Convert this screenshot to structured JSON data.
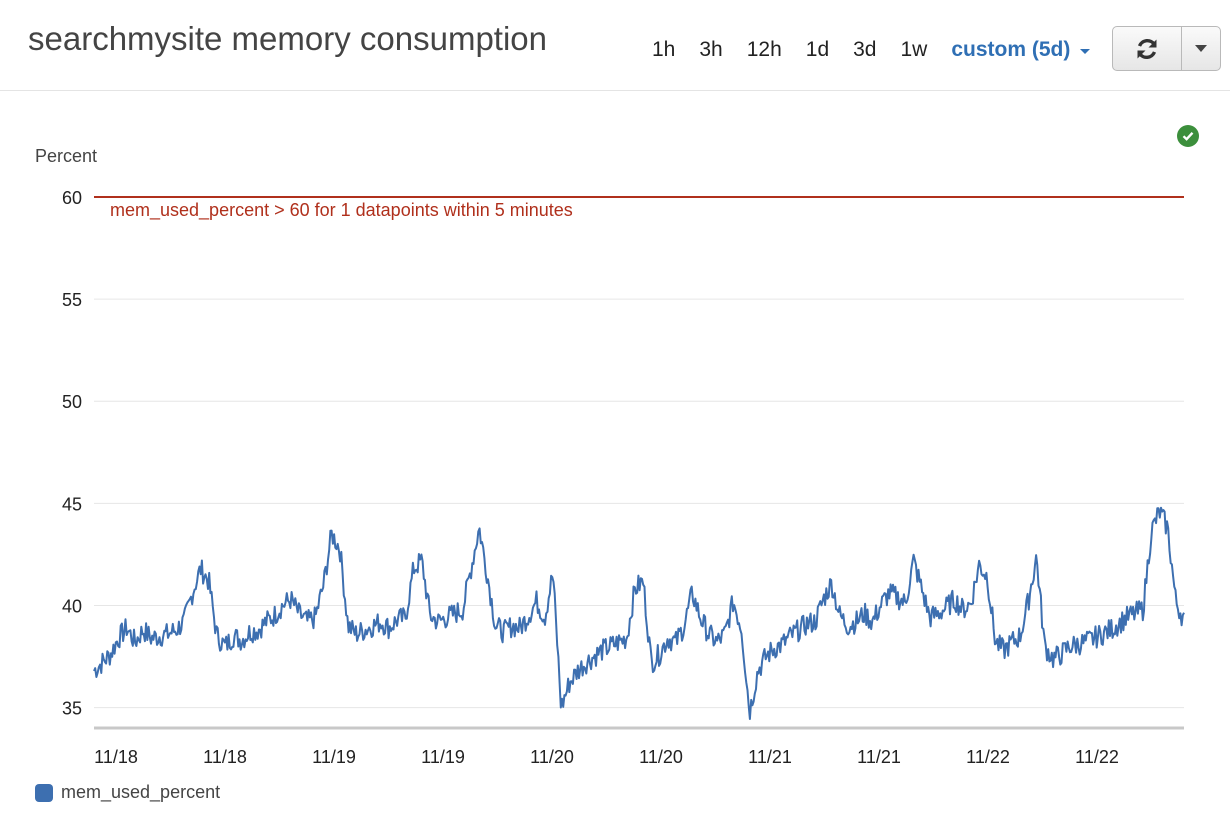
{
  "header": {
    "title": "searchmysite memory consumption",
    "ranges": [
      "1h",
      "3h",
      "12h",
      "1d",
      "3d",
      "1w"
    ],
    "active_range": "custom (5d)"
  },
  "icons": {
    "refresh": "refresh-icon",
    "dropdown": "chevron-down-icon",
    "status": "check-circle-icon"
  },
  "colors": {
    "series": "#3d6fb0",
    "threshold": "#b0301c",
    "accent": "#2f6fb4",
    "status_ok": "#3c8f3c"
  },
  "chart_data": {
    "type": "line",
    "ylabel": "Percent",
    "ylim": [
      34,
      60
    ],
    "yticks": [
      35,
      40,
      45,
      50,
      55,
      60
    ],
    "xlabels": [
      "11/18",
      "11/18",
      "11/19",
      "11/19",
      "11/20",
      "11/20",
      "11/21",
      "11/21",
      "11/22",
      "11/22"
    ],
    "threshold": {
      "value": 60,
      "label": "mem_used_percent > 60 for 1 datapoints within 5 minutes"
    },
    "series": [
      {
        "name": "mem_used_percent",
        "x_start": 0,
        "x_end": 5,
        "values": [
          36.8,
          37.2,
          37.6,
          38.4,
          38.9,
          38.2,
          38.8,
          38.4,
          38.5,
          38.6,
          38.8,
          39.2,
          40.6,
          41.8,
          41.2,
          38.5,
          38.0,
          38.5,
          38.3,
          38.7,
          38.8,
          39.2,
          39.5,
          40.0,
          40.3,
          39.6,
          39.2,
          39.4,
          41.0,
          43.5,
          42.8,
          39.0,
          38.6,
          38.8,
          39.0,
          39.2,
          38.9,
          39.3,
          39.4,
          41.8,
          42.2,
          39.5,
          39.2,
          39.4,
          39.6,
          39.8,
          41.8,
          43.8,
          41.5,
          39.0,
          38.7,
          39.0,
          38.9,
          39.5,
          40.2,
          39.4,
          41.6,
          35.0,
          36.2,
          36.8,
          37.2,
          37.5,
          37.8,
          38.0,
          38.2,
          38.4,
          40.8,
          41.2,
          37.2,
          37.6,
          38.4,
          38.2,
          39.0,
          40.6,
          39.4,
          38.6,
          38.2,
          38.6,
          40.2,
          38.9,
          34.8,
          36.8,
          37.5,
          37.9,
          38.1,
          38.5,
          38.8,
          39.1,
          39.2,
          40.3,
          41.1,
          39.5,
          39.0,
          39.2,
          39.6,
          39.2,
          40.0,
          40.6,
          40.4,
          40.1,
          42.2,
          40.8,
          39.4,
          39.6,
          39.9,
          40.3,
          39.8,
          40.1,
          42.0,
          41.4,
          38.2,
          37.8,
          38.2,
          38.5,
          40.2,
          42.4,
          38.0,
          37.4,
          37.6,
          38.0,
          38.1,
          38.2,
          38.4,
          38.6,
          38.8,
          39.1,
          39.4,
          39.6,
          39.8,
          43.6,
          44.6,
          43.8,
          40.2,
          39.3
        ]
      }
    ]
  },
  "legend": {
    "label": "mem_used_percent"
  }
}
